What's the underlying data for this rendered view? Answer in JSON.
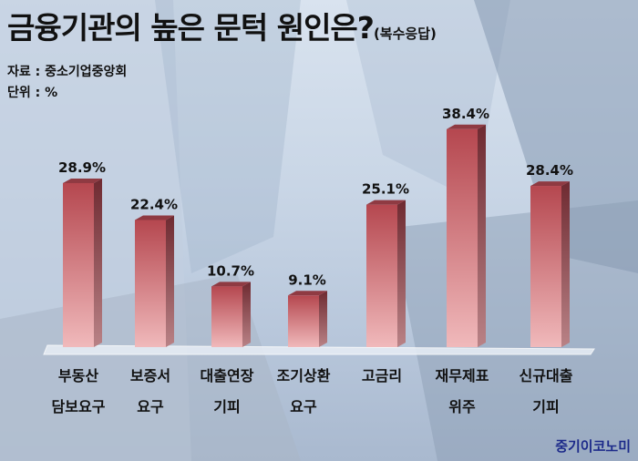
{
  "header": {
    "title": "금융기관의 높은 문턱 원인은?",
    "title_note": "(복수응답)",
    "source": "자료 : 중소기업중앙회",
    "unit": "단위 : %"
  },
  "brand": "중기이코노미",
  "chart_data": {
    "type": "bar",
    "title": "금융기관의 높은 문턱 원인은?",
    "categories": [
      [
        "부동산",
        "담보요구"
      ],
      [
        "보증서",
        "요구"
      ],
      [
        "대출연장",
        "기피"
      ],
      [
        "조기상환",
        "요구"
      ],
      [
        "고금리"
      ],
      [
        "재무제표",
        "위주"
      ],
      [
        "신규대출",
        "기피"
      ]
    ],
    "values": [
      28.9,
      22.4,
      10.7,
      9.1,
      25.1,
      38.4,
      28.4
    ],
    "value_labels": [
      "28.9%",
      "22.4%",
      "10.7%",
      "9.1%",
      "25.1%",
      "38.4%",
      "28.4%"
    ],
    "ylim": [
      0,
      40
    ],
    "grid": false,
    "bar_color": "#c9616a"
  }
}
